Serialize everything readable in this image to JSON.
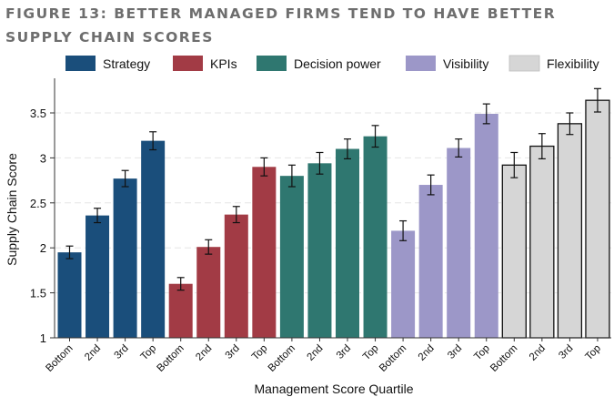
{
  "figure": {
    "title": "FIGURE 13: BETTER MANAGED FIRMS TEND TO HAVE BETTER SUPPLY CHAIN SCORES"
  },
  "chart_data": {
    "type": "bar",
    "ylabel": "Supply Chain Score",
    "xlabel": "Management Score Quartile",
    "ylim": [
      1,
      3.8
    ],
    "yticks": [
      1,
      1.5,
      2,
      2.5,
      3,
      3.5
    ],
    "ytick_labels": [
      "1",
      "1.5",
      "2",
      "2.5",
      "3",
      "3.5"
    ],
    "grid": true,
    "legend_position": "top",
    "categories": [
      "Bottom",
      "2nd",
      "3rd",
      "Top"
    ],
    "series": [
      {
        "name": "Strategy",
        "color": "#1a4e7b",
        "values": [
          1.95,
          2.36,
          2.77,
          3.19
        ],
        "errors": [
          0.07,
          0.08,
          0.09,
          0.1
        ]
      },
      {
        "name": "KPIs",
        "color": "#a23b45",
        "values": [
          1.6,
          2.01,
          2.37,
          2.9
        ],
        "errors": [
          0.07,
          0.08,
          0.09,
          0.1
        ]
      },
      {
        "name": "Decision power",
        "color": "#2f7770",
        "values": [
          2.8,
          2.94,
          3.1,
          3.24
        ],
        "errors": [
          0.12,
          0.12,
          0.11,
          0.12
        ]
      },
      {
        "name": "Visibility",
        "color": "#9c97c8",
        "values": [
          2.19,
          2.7,
          3.11,
          3.49
        ],
        "errors": [
          0.11,
          0.11,
          0.1,
          0.11
        ]
      },
      {
        "name": "Flexibility",
        "color": "#d6d6d6",
        "values": [
          2.92,
          3.13,
          3.38,
          3.64
        ],
        "errors": [
          0.14,
          0.14,
          0.12,
          0.13
        ]
      }
    ]
  }
}
